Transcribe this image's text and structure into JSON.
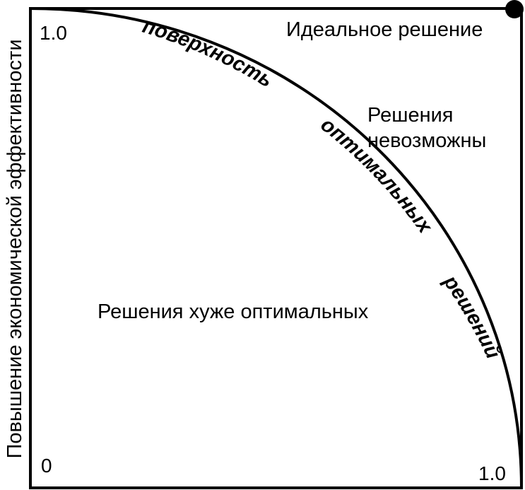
{
  "diagram": {
    "y_axis_label": "Повышение экономической эффективности",
    "y_axis_max_label": "1.0",
    "origin_label": "0",
    "x_axis_max_label": "1.0",
    "ideal_label": "Идеальное решение",
    "impossible_line1": "Решения",
    "impossible_line2": "невозможны",
    "worse_label": "Решения хуже оптимальных",
    "surface_word1": "поверхность",
    "surface_word2": "оптимальных",
    "surface_word3": "решений"
  }
}
